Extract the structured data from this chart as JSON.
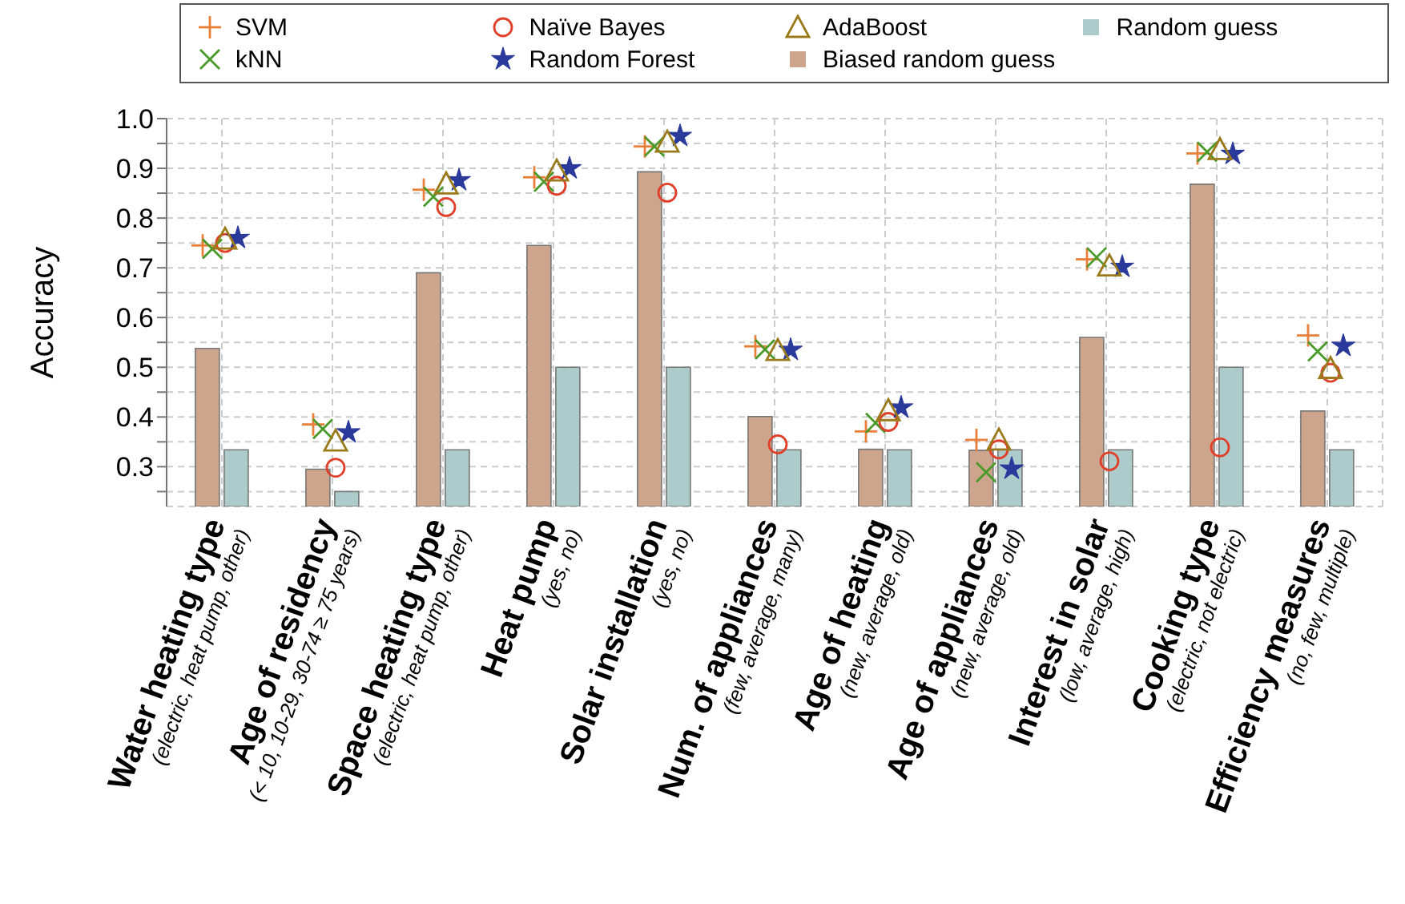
{
  "chart_data": {
    "type": "scatter",
    "ylabel": "Accuracy",
    "categories": [
      "Water heating type\n(electric, heat pump, other)",
      "Age of residency\n(< 10, 10-29, 30-74 ≥ 75 years)",
      "Space heating type\n(electric, heat pump, other)",
      "Heat pump\n(yes, no)",
      "Solar installation\n(yes, no)",
      "Num. of appliances\n(few, average, many)",
      "Age of heating\n(new, average, old)",
      "Age of appliances\n(new, average, old)",
      "Interest in solar\n(low, average, high)",
      "Cooking type\n(electric, not electric)",
      "Efficiency measures\n(no, few, multiple)"
    ],
    "series": [
      {
        "name": "SVM",
        "marker": "plus",
        "color": "#e8803a",
        "values": [
          0.745,
          0.385,
          0.857,
          0.882,
          0.944,
          0.542,
          0.371,
          0.354,
          0.717,
          0.93,
          0.564
        ]
      },
      {
        "name": "kNN",
        "marker": "cross",
        "color": "#4a9a2a",
        "values": [
          0.738,
          0.376,
          0.843,
          0.873,
          0.944,
          0.536,
          0.388,
          0.289,
          0.721,
          0.933,
          0.532
        ]
      },
      {
        "name": "Naïve Bayes",
        "marker": "circle",
        "color": "#e0402a",
        "values": [
          0.75,
          0.298,
          0.822,
          0.865,
          0.851,
          0.345,
          0.39,
          0.335,
          0.311,
          0.339,
          0.489
        ]
      },
      {
        "name": "Random Forest",
        "marker": "star",
        "color": "#2a3a9a",
        "values": [
          0.76,
          0.369,
          0.876,
          0.9,
          0.965,
          0.535,
          0.419,
          0.296,
          0.702,
          0.929,
          0.543
        ]
      },
      {
        "name": "AdaBoost",
        "marker": "triangle",
        "color": "#9a7a1a",
        "values": [
          0.758,
          0.352,
          0.869,
          0.895,
          0.953,
          0.534,
          0.413,
          0.354,
          0.704,
          0.938,
          0.498
        ]
      },
      {
        "name": "Biased random guess",
        "type": "bar",
        "color": "#cda58c",
        "values": [
          0.538,
          0.295,
          0.69,
          0.745,
          0.893,
          0.401,
          0.335,
          0.333,
          0.56,
          0.868,
          0.412
        ]
      },
      {
        "name": "Random guess",
        "type": "bar",
        "color": "#aecbcc",
        "values": [
          0.334,
          0.25,
          0.334,
          0.5,
          0.5,
          0.334,
          0.334,
          0.334,
          0.334,
          0.5,
          0.334
        ]
      }
    ],
    "ylim": [
      0.22,
      1.0
    ],
    "yticks": [
      {
        "value": 0.25,
        "label": null
      },
      0.3,
      {
        "value": 0.35,
        "label": null
      },
      0.4,
      {
        "value": 0.45,
        "label": null
      },
      0.5,
      {
        "value": 0.55,
        "label": null
      },
      0.6,
      {
        "value": 0.65,
        "label": null
      },
      0.7,
      {
        "value": 0.75,
        "label": null
      },
      0.8,
      {
        "value": 0.85,
        "label": null
      },
      0.9,
      {
        "value": 0.95,
        "label": null
      },
      {
        "value": 1.0,
        "label": "1.0"
      }
    ],
    "grid": true,
    "legend": "top"
  }
}
